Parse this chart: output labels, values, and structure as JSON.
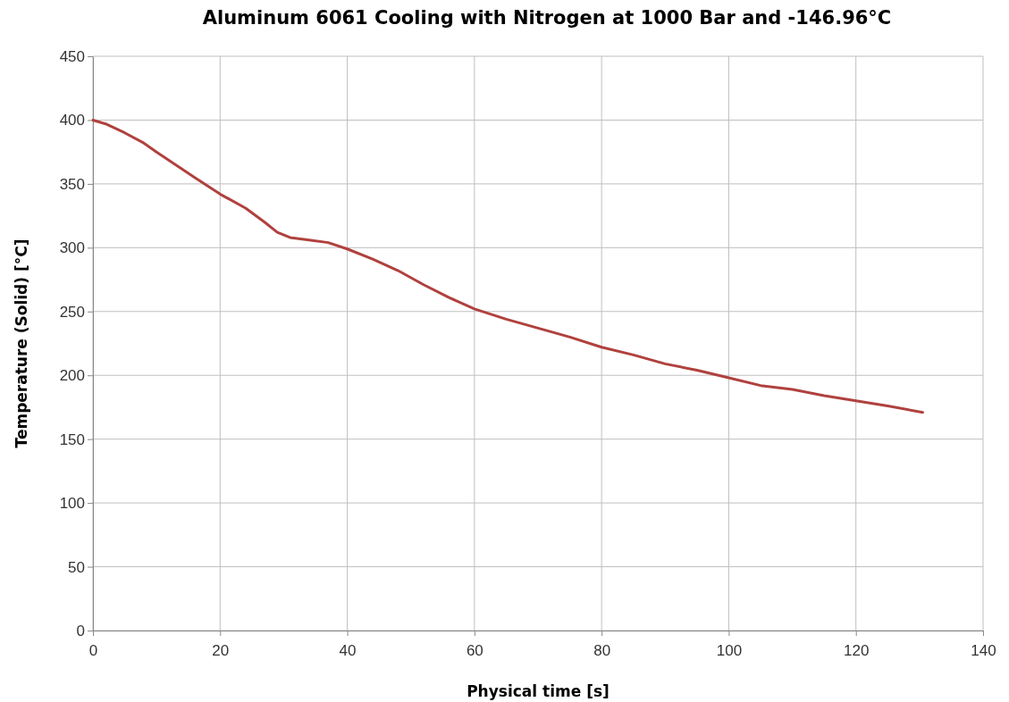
{
  "chart_data": {
    "type": "line",
    "title": "Aluminum 6061 Cooling with Nitrogen at 1000 Bar and -146.96°C",
    "xlabel": "Physical time [s]",
    "ylabel": "Temperature (Solid) [°C]",
    "x": [
      0,
      2,
      5,
      8,
      10,
      13,
      16,
      20,
      24,
      27,
      29,
      31,
      34,
      37,
      40,
      44,
      48,
      52,
      56,
      60,
      65,
      70,
      75,
      80,
      85,
      90,
      95,
      100,
      105,
      110,
      115,
      120,
      125,
      130.5
    ],
    "series": [
      {
        "color": "#b0413e",
        "values": [
          400,
          397,
          390,
          382,
          375,
          365,
          355,
          342,
          331,
          320,
          312,
          308,
          306,
          304,
          299,
          291,
          282,
          271,
          261,
          252,
          244,
          237,
          230,
          222,
          216,
          209,
          204,
          198,
          192,
          189,
          184,
          180,
          176,
          171
        ]
      }
    ],
    "xlim": [
      0,
      140
    ],
    "xticks": [
      0,
      20,
      40,
      60,
      80,
      100,
      120,
      140
    ],
    "ylim": [
      0,
      450
    ],
    "yticks": [
      0,
      50,
      100,
      150,
      200,
      250,
      300,
      350,
      400,
      450
    ],
    "grid": true,
    "marker": "none",
    "line_style": "solid"
  }
}
